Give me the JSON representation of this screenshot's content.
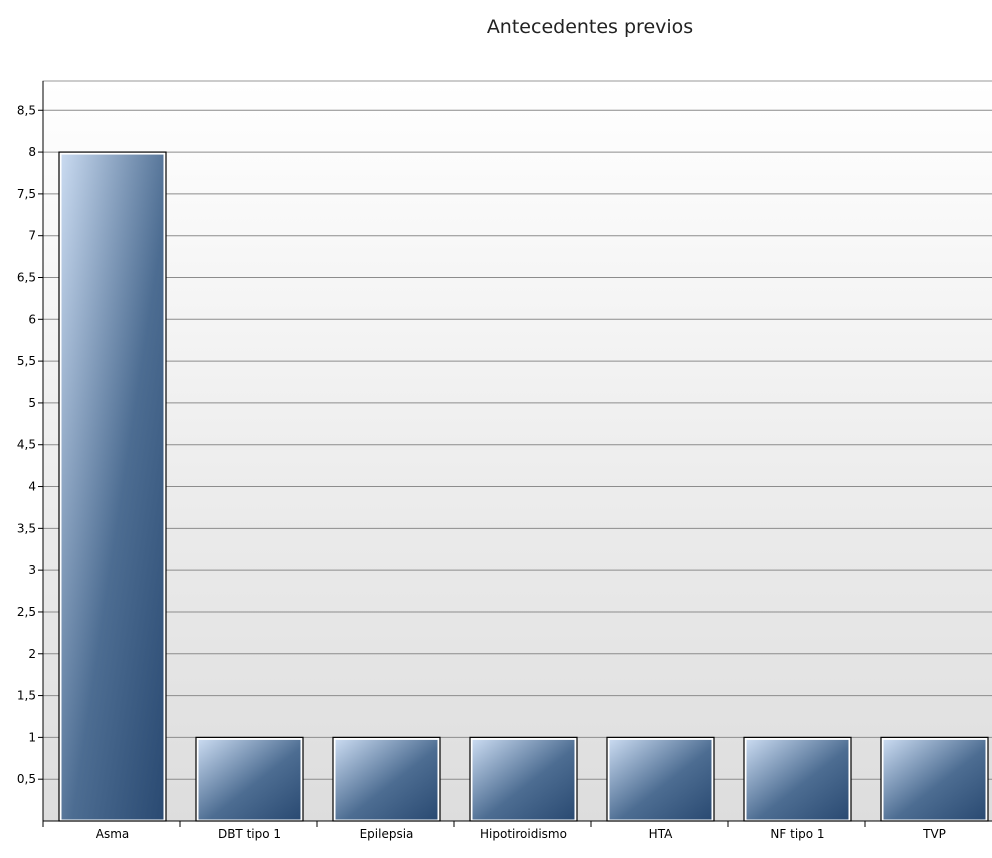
{
  "chart_data": {
    "type": "bar",
    "title": "Antecedentes previos",
    "xlabel": "",
    "ylabel": "",
    "categories": [
      "Asma",
      "DBT tipo 1",
      "Epilepsia",
      "Hipotiroidismo",
      "HTA",
      "NF tipo 1",
      "TVP"
    ],
    "values": [
      8,
      1,
      1,
      1,
      1,
      1,
      1
    ],
    "ylim": [
      0,
      8.85
    ],
    "yticks": [
      "0,5",
      "1",
      "1,5",
      "2",
      "2,5",
      "3",
      "3,5",
      "4",
      "4,5",
      "5",
      "5,5",
      "6",
      "6,5",
      "7",
      "7,5",
      "8",
      "8,5"
    ],
    "grid": true,
    "legend": "none",
    "colors": {
      "bar_light": "#c9daf0",
      "bar_dark": "#2a4a72",
      "plot_bg_top": "#ffffff",
      "plot_bg_bottom": "#dddddd"
    }
  }
}
